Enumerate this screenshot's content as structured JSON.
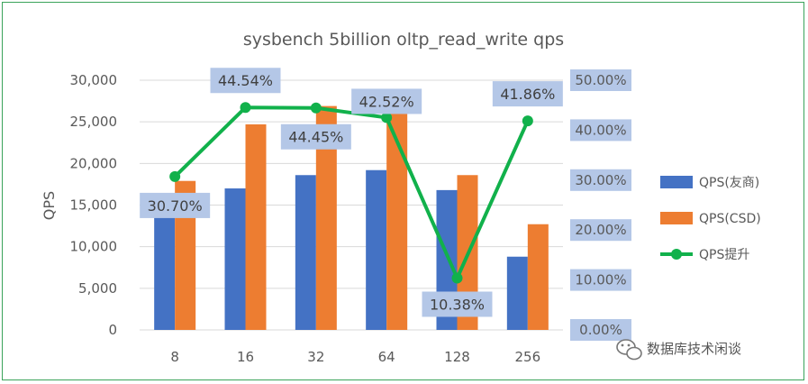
{
  "chart_data": {
    "type": "bar",
    "title": "sysbench 5billion oltp_read_write qps",
    "categories": [
      "8",
      "16",
      "32",
      "64",
      "128",
      "256"
    ],
    "ylabel": "QPS",
    "ylim": [
      0,
      30000
    ],
    "y_ticks": [
      "0",
      "5,000",
      "10,000",
      "15,000",
      "20,000",
      "25,000",
      "30,000"
    ],
    "y2lim": [
      0,
      0.5
    ],
    "y2_ticks": [
      "0.00%",
      "10.00%",
      "20.00%",
      "30.00%",
      "40.00%",
      "50.00%"
    ],
    "grid": true,
    "legend_position": "right",
    "series": [
      {
        "name": "QPS(友商)",
        "type": "bar",
        "color": "#4472c4",
        "values": [
          13700,
          17000,
          18600,
          19200,
          16800,
          8800
        ]
      },
      {
        "name": "QPS(CSD)",
        "type": "bar",
        "color": "#ed7d31",
        "values": [
          17900,
          24700,
          26900,
          27300,
          18600,
          12700
        ]
      },
      {
        "name": "QPS提升",
        "type": "line",
        "axis": "secondary",
        "color": "#11b14b",
        "values": [
          0.307,
          0.4454,
          0.4445,
          0.4252,
          0.1038,
          0.4186
        ],
        "labels": [
          "30.70%",
          "44.54%",
          "44.45%",
          "42.52%",
          "10.38%",
          "41.86%"
        ]
      }
    ]
  },
  "watermark": {
    "text": "数据库技术闲谈",
    "icon": "wechat-icon"
  }
}
